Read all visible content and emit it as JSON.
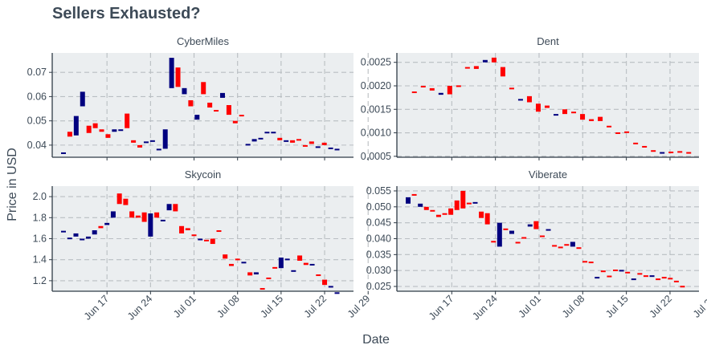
{
  "chart_data": {
    "type": "candlestick",
    "title": "Sellers Exhausted?",
    "xlabel": "Date",
    "ylabel": "Price in USD",
    "x_ticks": [
      "Jun 17",
      "Jun 24",
      "Jul 01",
      "Jul 08",
      "Jul 15",
      "Jul 22",
      "Jul 29"
    ],
    "colors": {
      "up": "#00007f",
      "down": "#ff0000"
    },
    "facets": [
      {
        "name": "CyberMiles",
        "ylim": [
          0.035,
          0.078
        ],
        "y_ticks": [
          0.04,
          0.05,
          0.06,
          0.07
        ],
        "y_tick_labels": [
          "0.04",
          "0.05",
          "0.06",
          "0.07"
        ],
        "candles": [
          [
            0.0365,
            0.037
          ],
          [
            0.0455,
            0.0435
          ],
          [
            0.044,
            0.052
          ],
          [
            0.056,
            0.062
          ],
          [
            0.048,
            0.045
          ],
          [
            0.049,
            0.047
          ],
          [
            0.0465,
            0.0455
          ],
          [
            0.0445,
            0.043
          ],
          [
            0.0455,
            0.0465
          ],
          [
            0.046,
            0.0465
          ],
          [
            0.053,
            0.047
          ],
          [
            0.042,
            0.041
          ],
          [
            0.04,
            0.039
          ],
          [
            0.041,
            0.0415
          ],
          [
            0.042,
            0.042
          ],
          [
            0.038,
            0.0385
          ],
          [
            0.0385,
            0.0465
          ],
          [
            0.0635,
            0.076
          ],
          [
            0.072,
            0.064
          ],
          [
            0.061,
            0.0635
          ],
          [
            0.0585,
            0.056
          ],
          [
            0.0505,
            0.0525
          ],
          [
            0.066,
            0.061
          ],
          [
            0.0575,
            0.0555
          ],
          [
            0.0545,
            0.054
          ],
          [
            0.0595,
            0.0615
          ],
          [
            0.0565,
            0.0525
          ],
          [
            0.05,
            0.049
          ],
          [
            0.0525,
            0.052
          ],
          [
            0.04,
            0.0405
          ],
          [
            0.0415,
            0.0425
          ],
          [
            0.043,
            0.043
          ],
          [
            0.0455,
            0.0455
          ],
          [
            0.0455,
            0.0455
          ],
          [
            0.043,
            0.042
          ],
          [
            0.042,
            0.042
          ],
          [
            0.042,
            0.041
          ],
          [
            0.0425,
            0.042
          ],
          [
            0.04,
            0.0395
          ],
          [
            0.0415,
            0.0405
          ],
          [
            0.0395,
            0.0395
          ],
          [
            0.041,
            0.04
          ],
          [
            0.039,
            0.039
          ],
          [
            0.038,
            0.0385
          ]
        ]
      },
      {
        "name": "Dent",
        "ylim": [
          0.00048,
          0.0027
        ],
        "y_ticks": [
          0.0005,
          0.001,
          0.0015,
          0.002,
          0.0025
        ],
        "y_tick_labels": [
          "0.0005",
          "0.0010",
          "0.0015",
          "0.0020",
          "0.0025"
        ],
        "candles": [
          [
            0.00188,
            0.00187
          ],
          [
            0.002,
            0.00198
          ],
          [
            0.00195,
            0.0019
          ],
          [
            0.00181,
            0.00185
          ],
          [
            0.002,
            0.00182
          ],
          [
            0.00201,
            0.002
          ],
          [
            0.0024,
            0.00238
          ],
          [
            0.00242,
            0.00236
          ],
          [
            0.0025,
            0.00255
          ],
          [
            0.0026,
            0.0025
          ],
          [
            0.0024,
            0.0022
          ],
          [
            0.00196,
            0.00195
          ],
          [
            0.0017,
            0.00172
          ],
          [
            0.00178,
            0.00165
          ],
          [
            0.00162,
            0.00145
          ],
          [
            0.00158,
            0.00153
          ],
          [
            0.0014,
            0.0014
          ],
          [
            0.0015,
            0.0014
          ],
          [
            0.00145,
            0.00142
          ],
          [
            0.0014,
            0.00128
          ],
          [
            0.00129,
            0.00125
          ],
          [
            0.00134,
            0.00125
          ],
          [
            0.00115,
            0.00113
          ],
          [
            0.00101,
            0.001
          ],
          [
            0.00103,
            0.00102
          ],
          [
            0.00079,
            0.00078
          ],
          [
            0.00072,
            0.00071
          ],
          [
            0.00063,
            0.00062
          ],
          [
            0.00059,
            0.00059
          ],
          [
            0.0006,
            0.00059
          ],
          [
            0.00061,
            0.0006
          ],
          [
            0.00059,
            0.00058
          ]
        ]
      },
      {
        "name": "Skycoin",
        "ylim": [
          1.1,
          2.1
        ],
        "y_ticks": [
          1.2,
          1.4,
          1.6,
          1.8,
          2.0
        ],
        "y_tick_labels": [
          "1.2",
          "1.4",
          "1.6",
          "1.8",
          "2.0"
        ],
        "candles": [
          [
            1.67,
            1.675
          ],
          [
            1.6,
            1.61
          ],
          [
            1.62,
            1.65
          ],
          [
            1.6,
            1.6
          ],
          [
            1.6,
            1.62
          ],
          [
            1.64,
            1.68
          ],
          [
            1.72,
            1.7
          ],
          [
            1.73,
            1.75
          ],
          [
            1.8,
            1.86
          ],
          [
            2.03,
            1.93
          ],
          [
            1.98,
            1.92
          ],
          [
            1.86,
            1.8
          ],
          [
            1.82,
            1.8
          ],
          [
            1.85,
            1.76
          ],
          [
            1.62,
            1.84
          ],
          [
            1.85,
            1.8
          ],
          [
            1.77,
            1.78
          ],
          [
            1.87,
            1.93
          ],
          [
            1.93,
            1.86
          ],
          [
            1.72,
            1.65
          ],
          [
            1.7,
            1.68
          ],
          [
            1.64,
            1.63
          ],
          [
            1.6,
            1.6
          ],
          [
            1.59,
            1.58
          ],
          [
            1.6,
            1.55
          ],
          [
            1.68,
            1.67
          ],
          [
            1.45,
            1.41
          ],
          [
            1.36,
            1.34
          ],
          [
            1.41,
            1.4
          ],
          [
            1.38,
            1.38
          ],
          [
            1.28,
            1.25
          ],
          [
            1.26,
            1.28
          ],
          [
            1.13,
            1.12
          ],
          [
            1.23,
            1.22
          ],
          [
            1.33,
            1.32
          ],
          [
            1.32,
            1.42
          ],
          [
            1.41,
            1.41
          ],
          [
            1.29,
            1.3
          ],
          [
            1.44,
            1.39
          ],
          [
            1.37,
            1.35
          ],
          [
            1.35,
            1.36
          ],
          [
            1.26,
            1.25
          ],
          [
            1.21,
            1.16
          ],
          [
            1.15,
            1.15
          ],
          [
            1.08,
            1.09
          ]
        ]
      },
      {
        "name": "Viberate",
        "ylim": [
          0.0235,
          0.0565
        ],
        "y_ticks": [
          0.025,
          0.03,
          0.035,
          0.04,
          0.045,
          0.05,
          0.055
        ],
        "y_tick_labels": [
          "0.025",
          "0.030",
          "0.035",
          "0.040",
          "0.045",
          "0.050",
          "0.055"
        ],
        "candles": [
          [
            0.051,
            0.053
          ],
          [
            0.054,
            0.0535
          ],
          [
            0.05,
            0.051
          ],
          [
            0.05,
            0.049
          ],
          [
            0.049,
            0.0485
          ],
          [
            0.0475,
            0.0468
          ],
          [
            0.048,
            0.0475
          ],
          [
            0.0495,
            0.0475
          ],
          [
            0.052,
            0.049
          ],
          [
            0.055,
            0.0495
          ],
          [
            0.0513,
            0.051
          ],
          [
            0.0515,
            0.0515
          ],
          [
            0.0485,
            0.0465
          ],
          [
            0.048,
            0.0445
          ],
          [
            0.0393,
            0.039
          ],
          [
            0.0375,
            0.045
          ],
          [
            0.0432,
            0.043
          ],
          [
            0.0415,
            0.0425
          ],
          [
            0.039,
            0.0385
          ],
          [
            0.0405,
            0.04
          ],
          [
            0.0438,
            0.0445
          ],
          [
            0.0455,
            0.043
          ],
          [
            0.041,
            0.0405
          ],
          [
            0.0425,
            0.043
          ],
          [
            0.038,
            0.0378
          ],
          [
            0.0375,
            0.0373
          ],
          [
            0.0383,
            0.038
          ],
          [
            0.0375,
            0.039
          ],
          [
            0.0373,
            0.037
          ],
          [
            0.033,
            0.0328
          ],
          [
            0.0328,
            0.0326
          ],
          [
            0.028,
            0.028
          ],
          [
            0.03,
            0.0298
          ],
          [
            0.0284,
            0.0282
          ],
          [
            0.0303,
            0.03
          ],
          [
            0.0302,
            0.0302
          ],
          [
            0.0296,
            0.0294
          ],
          [
            0.0275,
            0.0275
          ],
          [
            0.0292,
            0.029
          ],
          [
            0.0285,
            0.0282
          ],
          [
            0.0285,
            0.0285
          ],
          [
            0.0275,
            0.0273
          ],
          [
            0.028,
            0.0277
          ],
          [
            0.0277,
            0.0275
          ],
          [
            0.0268,
            0.0265
          ],
          [
            0.0252,
            0.025
          ]
        ]
      }
    ]
  }
}
